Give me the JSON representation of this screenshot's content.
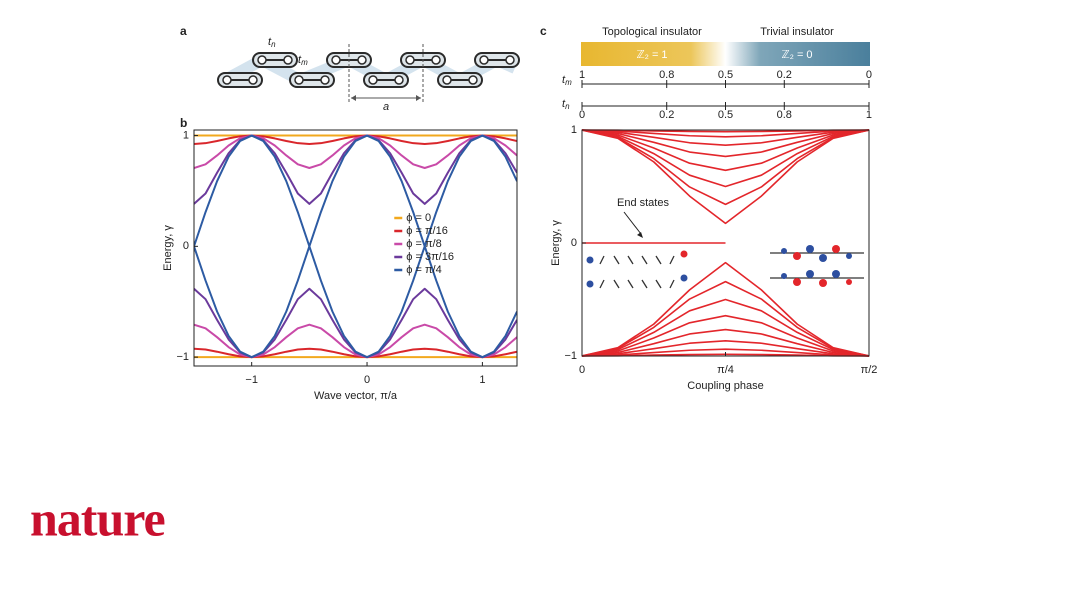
{
  "panel_labels": [
    "a",
    "b",
    "c"
  ],
  "diagram_a": {
    "tn": {
      "base": "t",
      "sub": "n"
    },
    "tm": {
      "base": "t",
      "sub": "m"
    },
    "period": "a"
  },
  "logo": "nature",
  "chart_data": [
    {
      "type": "line",
      "x_label": "Wave vector, π/a",
      "y_label": "Energy, γ",
      "xlim": [
        -1.5,
        1.3
      ],
      "ylim": [
        -1.08,
        1.05
      ],
      "xticks": [
        {
          "value": -1,
          "label": "−1"
        },
        0,
        1
      ],
      "yticks": [
        {
          "value": -1,
          "label": "−1"
        },
        0,
        1
      ],
      "legend": "right",
      "x": [
        -1.5,
        -1.4,
        -1.3,
        -1.2,
        -1.1,
        -1.0,
        -0.9,
        -0.8,
        -0.7,
        -0.6,
        -0.5,
        -0.4,
        -0.3,
        -0.2,
        -0.1,
        0,
        0.1,
        0.2,
        0.3,
        0.4,
        0.5,
        0.6,
        0.7,
        0.8,
        0.9,
        1.0,
        1.1,
        1.2,
        1.3
      ],
      "series": [
        {
          "name": "ϕ = 0",
          "color": "#f2a81d",
          "bands": [
            [
              1,
              1,
              1,
              1,
              1,
              1,
              1,
              1,
              1,
              1,
              1,
              1,
              1,
              1,
              1,
              1,
              1,
              1,
              1,
              1,
              1,
              1,
              1,
              1,
              1,
              1,
              1,
              1,
              1
            ],
            [
              -1,
              -1,
              -1,
              -1,
              -1,
              -1,
              -1,
              -1,
              -1,
              -1,
              -1,
              -1,
              -1,
              -1,
              -1,
              -1,
              -1,
              -1,
              -1,
              -1,
              -1,
              -1,
              -1,
              -1,
              -1,
              -1,
              -1,
              -1,
              -1
            ]
          ]
        },
        {
          "name": "ϕ = π/16",
          "color": "#d9262b",
          "bands": [
            [
              0.924,
              0.931,
              0.951,
              0.974,
              0.993,
              1,
              0.993,
              0.974,
              0.951,
              0.931,
              0.924,
              0.931,
              0.951,
              0.974,
              0.993,
              1,
              0.993,
              0.974,
              0.951,
              0.931,
              0.924,
              0.931,
              0.951,
              0.974,
              0.993,
              1,
              0.993,
              0.974,
              0.951
            ],
            [
              -0.924,
              -0.931,
              -0.951,
              -0.974,
              -0.993,
              -1,
              -0.993,
              -0.974,
              -0.951,
              -0.931,
              -0.924,
              -0.931,
              -0.951,
              -0.974,
              -0.993,
              -1,
              -0.993,
              -0.974,
              -0.951,
              -0.931,
              -0.924,
              -0.931,
              -0.951,
              -0.974,
              -0.993,
              -1,
              -0.993,
              -0.974,
              -0.951
            ]
          ]
        },
        {
          "name": "ϕ = π/8",
          "color": "#c94aa8",
          "bands": [
            [
              0.707,
              0.74,
              0.82,
              0.91,
              0.976,
              1,
              0.976,
              0.91,
              0.82,
              0.74,
              0.707,
              0.74,
              0.82,
              0.91,
              0.976,
              1,
              0.976,
              0.91,
              0.82,
              0.74,
              0.707,
              0.74,
              0.82,
              0.91,
              0.976,
              1,
              0.976,
              0.91,
              0.82
            ],
            [
              -0.707,
              -0.74,
              -0.82,
              -0.91,
              -0.976,
              -1,
              -0.976,
              -0.91,
              -0.82,
              -0.74,
              -0.707,
              -0.74,
              -0.82,
              -0.91,
              -0.976,
              -1,
              -0.976,
              -0.91,
              -0.82,
              -0.74,
              -0.707,
              -0.74,
              -0.82,
              -0.91,
              -0.976,
              -1,
              -0.976,
              -0.91,
              -0.82
            ]
          ]
        },
        {
          "name": "ϕ = 3π/16",
          "color": "#6b3a9c",
          "bands": [
            [
              0.383,
              0.477,
              0.664,
              0.84,
              0.958,
              1,
              0.958,
              0.84,
              0.664,
              0.477,
              0.383,
              0.477,
              0.664,
              0.84,
              0.958,
              1,
              0.958,
              0.84,
              0.664,
              0.477,
              0.383,
              0.477,
              0.664,
              0.84,
              0.958,
              1,
              0.958,
              0.84,
              0.664
            ],
            [
              -0.383,
              -0.477,
              -0.664,
              -0.84,
              -0.958,
              -1,
              -0.958,
              -0.84,
              -0.664,
              -0.477,
              -0.383,
              -0.477,
              -0.664,
              -0.84,
              -0.958,
              -1,
              -0.958,
              -0.84,
              -0.664,
              -0.477,
              -0.383,
              -0.477,
              -0.664,
              -0.84,
              -0.958,
              -1,
              -0.958,
              -0.84,
              -0.664
            ]
          ]
        },
        {
          "name": "ϕ = π/4",
          "color": "#2d5ba3",
          "bands": [
            [
              0,
              0.309,
              0.588,
              0.809,
              0.951,
              1,
              0.951,
              0.809,
              0.588,
              0.309,
              0,
              0.309,
              0.588,
              0.809,
              0.951,
              1,
              0.951,
              0.809,
              0.588,
              0.309,
              0,
              0.309,
              0.588,
              0.809,
              0.951,
              1,
              0.951,
              0.809,
              0.588
            ],
            [
              0,
              -0.309,
              -0.588,
              -0.809,
              -0.951,
              -1,
              -0.951,
              -0.809,
              -0.588,
              -0.309,
              0,
              -0.309,
              -0.588,
              -0.809,
              -0.951,
              -1,
              -0.951,
              -0.809,
              -0.588,
              -0.309,
              0,
              -0.309,
              -0.588,
              -0.809,
              -0.951,
              -1,
              -0.951,
              -0.809,
              -0.588
            ]
          ]
        }
      ]
    },
    {
      "type": "line",
      "x_label": "Coupling phase",
      "y_label": "Energy, γ",
      "annotation": "End states",
      "phase_labels": [
        "Topological insulator",
        "Trivial insulator"
      ],
      "z2_labels": [
        "ℤ₂ = 1",
        "ℤ₂ = 0"
      ],
      "tm_label": {
        "base": "t",
        "sub": "m"
      },
      "tn_label": {
        "base": "t",
        "sub": "n"
      },
      "tm_ticks": [
        1,
        0.8,
        0.5,
        0.2,
        0
      ],
      "tn_ticks": [
        0,
        0.2,
        0.5,
        0.8,
        1
      ],
      "xlim": [
        0,
        1.5708
      ],
      "ylim": [
        -1,
        1
      ],
      "xticks": [
        0,
        {
          "value": 0.7854,
          "label": "π/4"
        },
        {
          "value": 1.5708,
          "label": "π/2"
        }
      ],
      "yticks": [
        {
          "value": -1,
          "label": "−1"
        },
        0,
        1
      ],
      "color": "#e3262b",
      "x": [
        0,
        0.1963,
        0.3927,
        0.589,
        0.7854,
        0.9817,
        1.1781,
        1.3744,
        1.5708
      ],
      "series": [
        {
          "values": [
            1,
            0.998,
            0.992,
            0.987,
            0.985,
            0.987,
            0.992,
            0.998,
            1
          ]
        },
        {
          "values": [
            1,
            0.991,
            0.97,
            0.949,
            0.94,
            0.949,
            0.97,
            0.991,
            1
          ]
        },
        {
          "values": [
            1,
            0.981,
            0.935,
            0.887,
            0.866,
            0.887,
            0.935,
            0.981,
            1
          ]
        },
        {
          "values": [
            1,
            0.969,
            0.891,
            0.805,
            0.766,
            0.805,
            0.891,
            0.969,
            1
          ]
        },
        {
          "values": [
            1,
            0.956,
            0.841,
            0.706,
            0.643,
            0.706,
            0.841,
            0.956,
            1
          ]
        },
        {
          "values": [
            1,
            0.943,
            0.791,
            0.6,
            0.5,
            0.6,
            0.791,
            0.943,
            1
          ]
        },
        {
          "values": [
            1,
            0.933,
            0.747,
            0.496,
            0.342,
            0.496,
            0.747,
            0.933,
            1
          ]
        },
        {
          "values": [
            1,
            0.926,
            0.718,
            0.415,
            0.174,
            0.415,
            0.718,
            0.926,
            1
          ]
        },
        {
          "values": [
            -1,
            -0.998,
            -0.992,
            -0.987,
            -0.985,
            -0.987,
            -0.992,
            -0.998,
            -1
          ]
        },
        {
          "values": [
            -1,
            -0.991,
            -0.97,
            -0.949,
            -0.94,
            -0.949,
            -0.97,
            -0.991,
            -1
          ]
        },
        {
          "values": [
            -1,
            -0.981,
            -0.935,
            -0.887,
            -0.866,
            -0.887,
            -0.935,
            -0.981,
            -1
          ]
        },
        {
          "values": [
            -1,
            -0.969,
            -0.891,
            -0.805,
            -0.766,
            -0.805,
            -0.891,
            -0.969,
            -1
          ]
        },
        {
          "values": [
            -1,
            -0.956,
            -0.841,
            -0.706,
            -0.643,
            -0.706,
            -0.841,
            -0.956,
            -1
          ]
        },
        {
          "values": [
            -1,
            -0.943,
            -0.791,
            -0.6,
            -0.5,
            -0.6,
            -0.791,
            -0.943,
            -1
          ]
        },
        {
          "values": [
            -1,
            -0.933,
            -0.747,
            -0.496,
            -0.342,
            -0.496,
            -0.747,
            -0.933,
            -1
          ]
        },
        {
          "values": [
            -1,
            -0.926,
            -0.718,
            -0.415,
            -0.174,
            -0.415,
            -0.718,
            -0.926,
            -1
          ]
        },
        {
          "values": [
            0,
            0,
            0,
            0,
            0,
            null,
            null,
            null,
            null
          ]
        }
      ]
    }
  ]
}
